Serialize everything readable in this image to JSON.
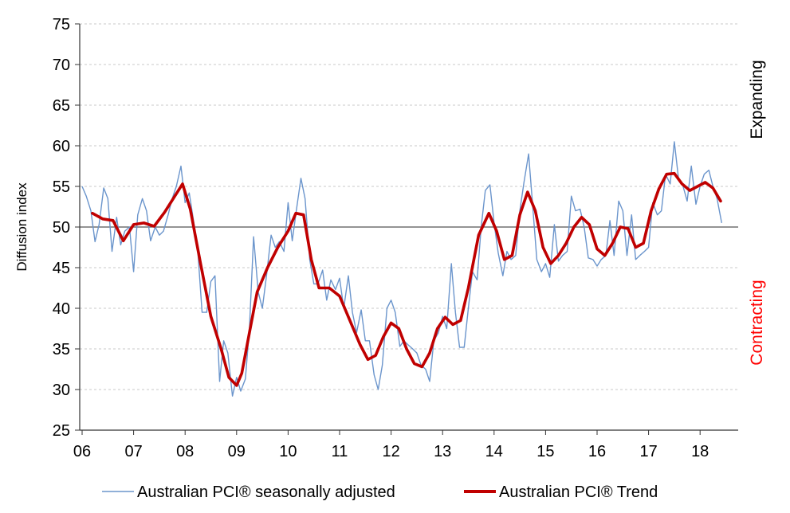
{
  "chart_data": {
    "type": "line",
    "ylabel": "Diffusion index",
    "ylim": [
      25,
      75
    ],
    "yticks": [
      "25",
      "30",
      "35",
      "40",
      "45",
      "50",
      "55",
      "60",
      "65",
      "70",
      "75"
    ],
    "xlim": [
      2006.0,
      2018.8
    ],
    "xticks": [
      "06",
      "07",
      "08",
      "09",
      "10",
      "11",
      "12",
      "13",
      "14",
      "15",
      "16",
      "17",
      "18"
    ],
    "grid": "horizontal dashed",
    "reference_line": 50,
    "annotations": {
      "upper": "Expanding",
      "lower": "Contracting"
    },
    "colors": {
      "sa": "#6b95cc",
      "trend": "#c00000",
      "contracting": "#ff0000",
      "expanding": "#000000"
    },
    "series": [
      {
        "name": "Australian PCI® seasonally adjusted",
        "style": "thin",
        "x": [
          2006.0,
          2006.08,
          2006.17,
          2006.25,
          2006.33,
          2006.42,
          2006.5,
          2006.58,
          2006.67,
          2006.75,
          2006.83,
          2006.92,
          2007.0,
          2007.08,
          2007.17,
          2007.25,
          2007.33,
          2007.42,
          2007.5,
          2007.58,
          2007.67,
          2007.75,
          2007.83,
          2007.92,
          2008.0,
          2008.08,
          2008.17,
          2008.25,
          2008.33,
          2008.42,
          2008.5,
          2008.58,
          2008.67,
          2008.75,
          2008.83,
          2008.92,
          2009.0,
          2009.08,
          2009.17,
          2009.25,
          2009.33,
          2009.42,
          2009.5,
          2009.58,
          2009.67,
          2009.75,
          2009.83,
          2009.92,
          2010.0,
          2010.08,
          2010.17,
          2010.25,
          2010.33,
          2010.42,
          2010.5,
          2010.58,
          2010.67,
          2010.75,
          2010.83,
          2010.92,
          2011.0,
          2011.08,
          2011.17,
          2011.25,
          2011.33,
          2011.42,
          2011.5,
          2011.58,
          2011.67,
          2011.75,
          2011.83,
          2011.92,
          2012.0,
          2012.08,
          2012.17,
          2012.25,
          2012.33,
          2012.42,
          2012.5,
          2012.58,
          2012.67,
          2012.75,
          2012.83,
          2012.92,
          2013.0,
          2013.08,
          2013.17,
          2013.25,
          2013.33,
          2013.42,
          2013.5,
          2013.58,
          2013.67,
          2013.75,
          2013.83,
          2013.92,
          2014.0,
          2014.08,
          2014.17,
          2014.25,
          2014.33,
          2014.42,
          2014.5,
          2014.58,
          2014.67,
          2014.75,
          2014.83,
          2014.92,
          2015.0,
          2015.08,
          2015.17,
          2015.25,
          2015.33,
          2015.42,
          2015.5,
          2015.58,
          2015.67,
          2015.75,
          2015.83,
          2015.92,
          2016.0,
          2016.08,
          2016.17,
          2016.25,
          2016.33,
          2016.42,
          2016.5,
          2016.58,
          2016.67,
          2016.75,
          2016.83,
          2016.92,
          2017.0,
          2017.08,
          2017.17,
          2017.25,
          2017.33,
          2017.42,
          2017.5,
          2017.58,
          2017.67,
          2017.75,
          2017.83,
          2017.92,
          2018.0,
          2018.08,
          2018.17,
          2018.25,
          2018.33,
          2018.42
        ],
        "values": [
          55,
          53.8,
          52,
          48.2,
          50.3,
          54.8,
          53.5,
          47,
          51.2,
          47.8,
          49.5,
          50,
          44.5,
          51.5,
          53.5,
          52,
          48.3,
          50,
          49,
          49.5,
          51.5,
          53.5,
          55,
          57.5,
          53,
          54.2,
          50.5,
          46.8,
          39.5,
          39.5,
          43.3,
          44,
          31,
          36,
          34.5,
          29.2,
          31.5,
          29.8,
          31.3,
          37.5,
          48.8,
          42,
          40,
          44,
          49,
          47.5,
          48.2,
          47,
          53,
          48.3,
          52.5,
          56,
          53.5,
          46,
          43,
          43,
          44.7,
          41,
          43.5,
          42.3,
          43.7,
          40,
          44,
          39.5,
          37,
          39.8,
          36,
          36,
          31.8,
          30,
          33,
          40,
          41,
          39.5,
          35.3,
          36,
          35.5,
          35,
          34.5,
          33,
          32.5,
          31,
          36,
          37,
          39,
          37.5,
          45.5,
          39.5,
          35.2,
          35.2,
          40,
          44.5,
          43.5,
          50,
          54.5,
          55.2,
          50.5,
          46.8,
          44,
          47,
          46,
          46.5,
          52,
          55.5,
          59,
          52.5,
          46,
          44.5,
          45.5,
          43.8,
          50.3,
          45.8,
          46.5,
          47,
          53.8,
          52,
          52.2,
          50,
          46.2,
          46,
          45.2,
          46,
          46.5,
          50.8,
          46.5,
          53.2,
          52,
          46.5,
          51.5,
          46,
          46.5,
          47,
          47.5,
          53,
          51.5,
          52,
          56.5,
          55.3,
          60.5,
          56,
          55,
          53.2,
          57.5,
          52.8,
          55,
          56.5,
          57,
          55,
          53.5,
          50.5
        ]
      },
      {
        "name": "Australian PCI® Trend",
        "style": "thick",
        "x": [
          2006.2,
          2006.4,
          2006.6,
          2006.8,
          2007.0,
          2007.2,
          2007.4,
          2007.6,
          2007.8,
          2007.95,
          2008.1,
          2008.3,
          2008.5,
          2008.7,
          2008.85,
          2009.0,
          2009.1,
          2009.25,
          2009.4,
          2009.6,
          2009.8,
          2010.0,
          2010.15,
          2010.3,
          2010.45,
          2010.6,
          2010.8,
          2011.0,
          2011.2,
          2011.4,
          2011.55,
          2011.7,
          2011.85,
          2012.0,
          2012.15,
          2012.3,
          2012.45,
          2012.6,
          2012.75,
          2012.9,
          2013.05,
          2013.2,
          2013.35,
          2013.5,
          2013.7,
          2013.9,
          2014.05,
          2014.2,
          2014.35,
          2014.5,
          2014.65,
          2014.8,
          2014.95,
          2015.1,
          2015.25,
          2015.4,
          2015.55,
          2015.7,
          2015.85,
          2016.0,
          2016.15,
          2016.3,
          2016.45,
          2016.6,
          2016.75,
          2016.9,
          2017.05,
          2017.2,
          2017.35,
          2017.5,
          2017.65,
          2017.8,
          2017.95,
          2018.1,
          2018.25,
          2018.4
        ],
        "values": [
          51.7,
          51.0,
          50.8,
          48.3,
          50.3,
          50.5,
          50.1,
          51.8,
          53.8,
          55.3,
          52.2,
          45.5,
          39.0,
          35.0,
          31.5,
          30.5,
          32.0,
          37.0,
          42.0,
          45.0,
          47.5,
          49.5,
          51.7,
          51.5,
          46.0,
          42.5,
          42.5,
          41.5,
          38.5,
          35.5,
          33.7,
          34.2,
          36.5,
          38.2,
          37.5,
          35.0,
          33.2,
          32.8,
          34.5,
          37.5,
          38.9,
          38.0,
          38.5,
          42.5,
          49.0,
          51.7,
          49.5,
          46.0,
          46.5,
          51.5,
          54.3,
          52.0,
          47.5,
          45.5,
          46.5,
          48.0,
          50.0,
          51.2,
          50.3,
          47.3,
          46.5,
          48.0,
          50.0,
          49.8,
          47.5,
          48.0,
          52.0,
          54.7,
          56.5,
          56.6,
          55.3,
          54.5,
          55.0,
          55.5,
          54.8,
          53.2
        ]
      }
    ]
  }
}
